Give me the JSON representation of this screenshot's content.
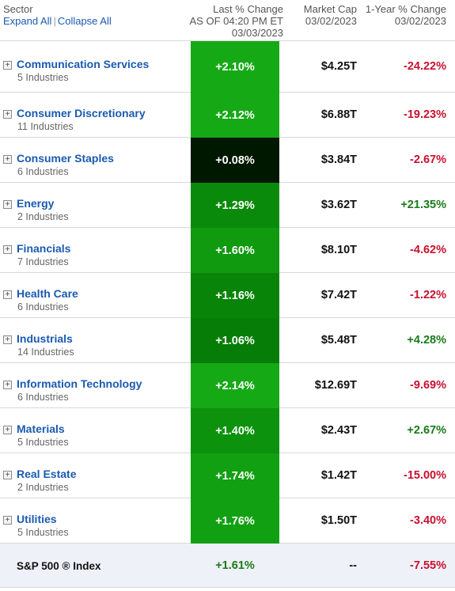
{
  "header": {
    "sector_label": "Sector",
    "expand_all": "Expand All",
    "collapse_all": "Collapse All",
    "separator": "|",
    "change_label": "Last % Change",
    "change_asof": "AS OF 04:20 PM ET",
    "change_date": "03/03/2023",
    "cap_label": "Market Cap",
    "cap_date": "03/02/2023",
    "year_label": "1-Year % Change",
    "year_date": "03/02/2023"
  },
  "rows": [
    {
      "name": "Communication Services",
      "industries": "5 Industries",
      "change": "+2.10%",
      "change_bg": "#16a916",
      "cap": "$4.25T",
      "year": "-24.22%",
      "year_dir": "neg"
    },
    {
      "name": "Consumer Discretionary",
      "industries": "11 Industries",
      "change": "+2.12%",
      "change_bg": "#16a916",
      "cap": "$6.88T",
      "year": "-19.23%",
      "year_dir": "neg"
    },
    {
      "name": "Consumer Staples",
      "industries": "6 Industries",
      "change": "+0.08%",
      "change_bg": "#001800",
      "cap": "$3.84T",
      "year": "-2.67%",
      "year_dir": "neg"
    },
    {
      "name": "Energy",
      "industries": "2 Industries",
      "change": "+1.29%",
      "change_bg": "#0a8a0a",
      "cap": "$3.62T",
      "year": "+21.35%",
      "year_dir": "pos"
    },
    {
      "name": "Financials",
      "industries": "7 Industries",
      "change": "+1.60%",
      "change_bg": "#0f9a0f",
      "cap": "$8.10T",
      "year": "-4.62%",
      "year_dir": "neg"
    },
    {
      "name": "Health Care",
      "industries": "6 Industries",
      "change": "+1.16%",
      "change_bg": "#088408",
      "cap": "$7.42T",
      "year": "-1.22%",
      "year_dir": "neg"
    },
    {
      "name": "Industrials",
      "industries": "14 Industries",
      "change": "+1.06%",
      "change_bg": "#067d06",
      "cap": "$5.48T",
      "year": "+4.28%",
      "year_dir": "pos"
    },
    {
      "name": "Information Technology",
      "industries": "6 Industries",
      "change": "+2.14%",
      "change_bg": "#16a916",
      "cap": "$12.69T",
      "year": "-9.69%",
      "year_dir": "neg"
    },
    {
      "name": "Materials",
      "industries": "5 Industries",
      "change": "+1.40%",
      "change_bg": "#0c920c",
      "cap": "$2.43T",
      "year": "+2.67%",
      "year_dir": "pos"
    },
    {
      "name": "Real Estate",
      "industries": "2 Industries",
      "change": "+1.74%",
      "change_bg": "#11a011",
      "cap": "$1.42T",
      "year": "-15.00%",
      "year_dir": "neg"
    },
    {
      "name": "Utilities",
      "industries": "5 Industries",
      "change": "+1.76%",
      "change_bg": "#11a011",
      "cap": "$1.50T",
      "year": "-3.40%",
      "year_dir": "neg"
    }
  ],
  "total": {
    "name": "S&P 500 ® Index",
    "change": "+1.61%",
    "cap": "--",
    "year": "-7.55%"
  },
  "icons": {
    "toggle": "plus-box-icon"
  }
}
